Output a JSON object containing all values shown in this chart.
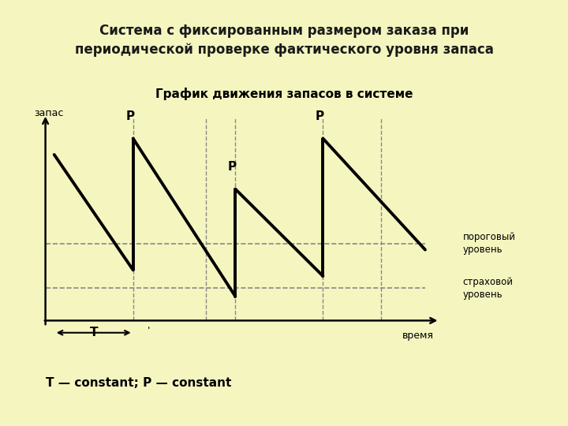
{
  "title_main": "Система с фиксированным размером заказа при\nпериодической проверке фактического уровня запаса",
  "subtitle": "График движения запасов в системе",
  "footer": "Т — constant; P — constant",
  "label_y": "запас",
  "label_x": "время",
  "label_T": "Т",
  "label_P": "P",
  "threshold_label": "пороговый\nуровень",
  "safety_label": "страховой\nуровень",
  "bg_color": "#f5f5c0",
  "header_color": "#b8d8f0",
  "line_color": "#000000",
  "dash_color": "#888888",
  "threshold_level": 3.8,
  "safety_level": 1.6,
  "xlim": [
    0,
    14.0
  ],
  "ylim": [
    -1.0,
    11.0
  ]
}
